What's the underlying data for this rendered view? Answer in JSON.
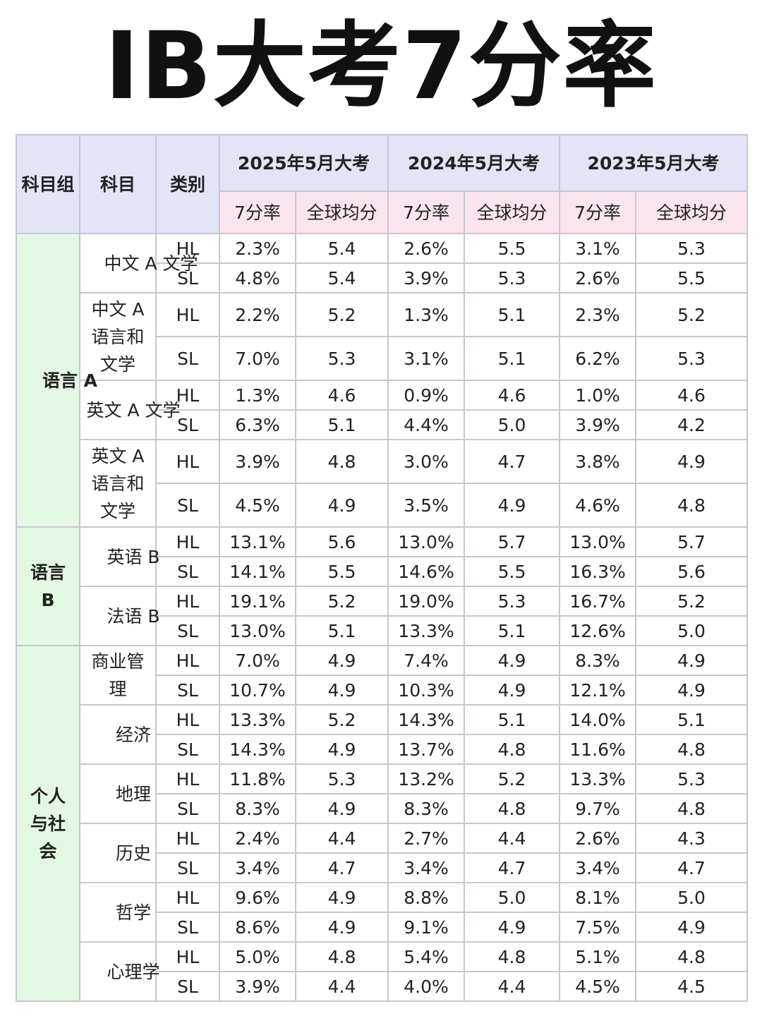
{
  "title": "IB大考7分率",
  "header": {
    "group": "科目组",
    "subject": "科目",
    "level": "类别",
    "years": [
      "2025年5月大考",
      "2024年5月大考",
      "2023年5月大考"
    ],
    "rate": "7分率",
    "avg": "全球均分"
  },
  "groups": [
    {
      "name": "语言 A",
      "subjects": [
        {
          "name": "中文 A 文学",
          "rows": [
            {
              "level": "HL",
              "v": [
                "2.3%",
                "5.4",
                "2.6%",
                "5.5",
                "3.1%",
                "5.3"
              ]
            },
            {
              "level": "SL",
              "v": [
                "4.8%",
                "5.4",
                "3.9%",
                "5.3",
                "2.6%",
                "5.5"
              ]
            }
          ]
        },
        {
          "name": "中文 A 语言和文学",
          "rows": [
            {
              "level": "HL",
              "v": [
                "2.2%",
                "5.2",
                "1.3%",
                "5.1",
                "2.3%",
                "5.2"
              ]
            },
            {
              "level": "SL",
              "v": [
                "7.0%",
                "5.3",
                "3.1%",
                "5.1",
                "6.2%",
                "5.3"
              ]
            }
          ]
        },
        {
          "name": "英文 A 文学",
          "rows": [
            {
              "level": "HL",
              "v": [
                "1.3%",
                "4.6",
                "0.9%",
                "4.6",
                "1.0%",
                "4.6"
              ]
            },
            {
              "level": "SL",
              "v": [
                "6.3%",
                "5.1",
                "4.4%",
                "5.0",
                "3.9%",
                "4.2"
              ]
            }
          ]
        },
        {
          "name": "英文 A 语言和文学",
          "rows": [
            {
              "level": "HL",
              "v": [
                "3.9%",
                "4.8",
                "3.0%",
                "4.7",
                "3.8%",
                "4.9"
              ]
            },
            {
              "level": "SL",
              "v": [
                "4.5%",
                "4.9",
                "3.5%",
                "4.9",
                "4.6%",
                "4.8"
              ]
            }
          ]
        }
      ]
    },
    {
      "name": "语言 B",
      "subjects": [
        {
          "name": "英语 B",
          "rows": [
            {
              "level": "HL",
              "v": [
                "13.1%",
                "5.6",
                "13.0%",
                "5.7",
                "13.0%",
                "5.7"
              ]
            },
            {
              "level": "SL",
              "v": [
                "14.1%",
                "5.5",
                "14.6%",
                "5.5",
                "16.3%",
                "5.6"
              ]
            }
          ]
        },
        {
          "name": "法语 B",
          "rows": [
            {
              "level": "HL",
              "v": [
                "19.1%",
                "5.2",
                "19.0%",
                "5.3",
                "16.7%",
                "5.2"
              ]
            },
            {
              "level": "SL",
              "v": [
                "13.0%",
                "5.1",
                "13.3%",
                "5.1",
                "12.6%",
                "5.0"
              ]
            }
          ]
        }
      ]
    },
    {
      "name": "个人与社会",
      "subjects": [
        {
          "name": "商业管理",
          "rows": [
            {
              "level": "HL",
              "v": [
                "7.0%",
                "4.9",
                "7.4%",
                "4.9",
                "8.3%",
                "4.9"
              ]
            },
            {
              "level": "SL",
              "v": [
                "10.7%",
                "4.9",
                "10.3%",
                "4.9",
                "12.1%",
                "4.9"
              ]
            }
          ]
        },
        {
          "name": "经济",
          "rows": [
            {
              "level": "HL",
              "v": [
                "13.3%",
                "5.2",
                "14.3%",
                "5.1",
                "14.0%",
                "5.1"
              ]
            },
            {
              "level": "SL",
              "v": [
                "14.3%",
                "4.9",
                "13.7%",
                "4.8",
                "11.6%",
                "4.8"
              ]
            }
          ]
        },
        {
          "name": "地理",
          "rows": [
            {
              "level": "HL",
              "v": [
                "11.8%",
                "5.3",
                "13.2%",
                "5.2",
                "13.3%",
                "5.3"
              ]
            },
            {
              "level": "SL",
              "v": [
                "8.3%",
                "4.9",
                "8.3%",
                "4.8",
                "9.7%",
                "4.8"
              ]
            }
          ]
        },
        {
          "name": "历史",
          "rows": [
            {
              "level": "HL",
              "v": [
                "2.4%",
                "4.4",
                "2.7%",
                "4.4",
                "2.6%",
                "4.3"
              ]
            },
            {
              "level": "SL",
              "v": [
                "3.4%",
                "4.7",
                "3.4%",
                "4.7",
                "3.4%",
                "4.7"
              ]
            }
          ]
        },
        {
          "name": "哲学",
          "rows": [
            {
              "level": "HL",
              "v": [
                "9.6%",
                "4.9",
                "8.8%",
                "5.0",
                "8.1%",
                "5.0"
              ]
            },
            {
              "level": "SL",
              "v": [
                "8.6%",
                "4.9",
                "9.1%",
                "4.9",
                "7.5%",
                "4.9"
              ]
            }
          ]
        },
        {
          "name": "心理学",
          "rows": [
            {
              "level": "HL",
              "v": [
                "5.0%",
                "4.8",
                "5.4%",
                "4.8",
                "5.1%",
                "4.8"
              ]
            },
            {
              "level": "SL",
              "v": [
                "3.9%",
                "4.4",
                "4.0%",
                "4.4",
                "4.5%",
                "4.5"
              ]
            }
          ]
        }
      ]
    }
  ]
}
